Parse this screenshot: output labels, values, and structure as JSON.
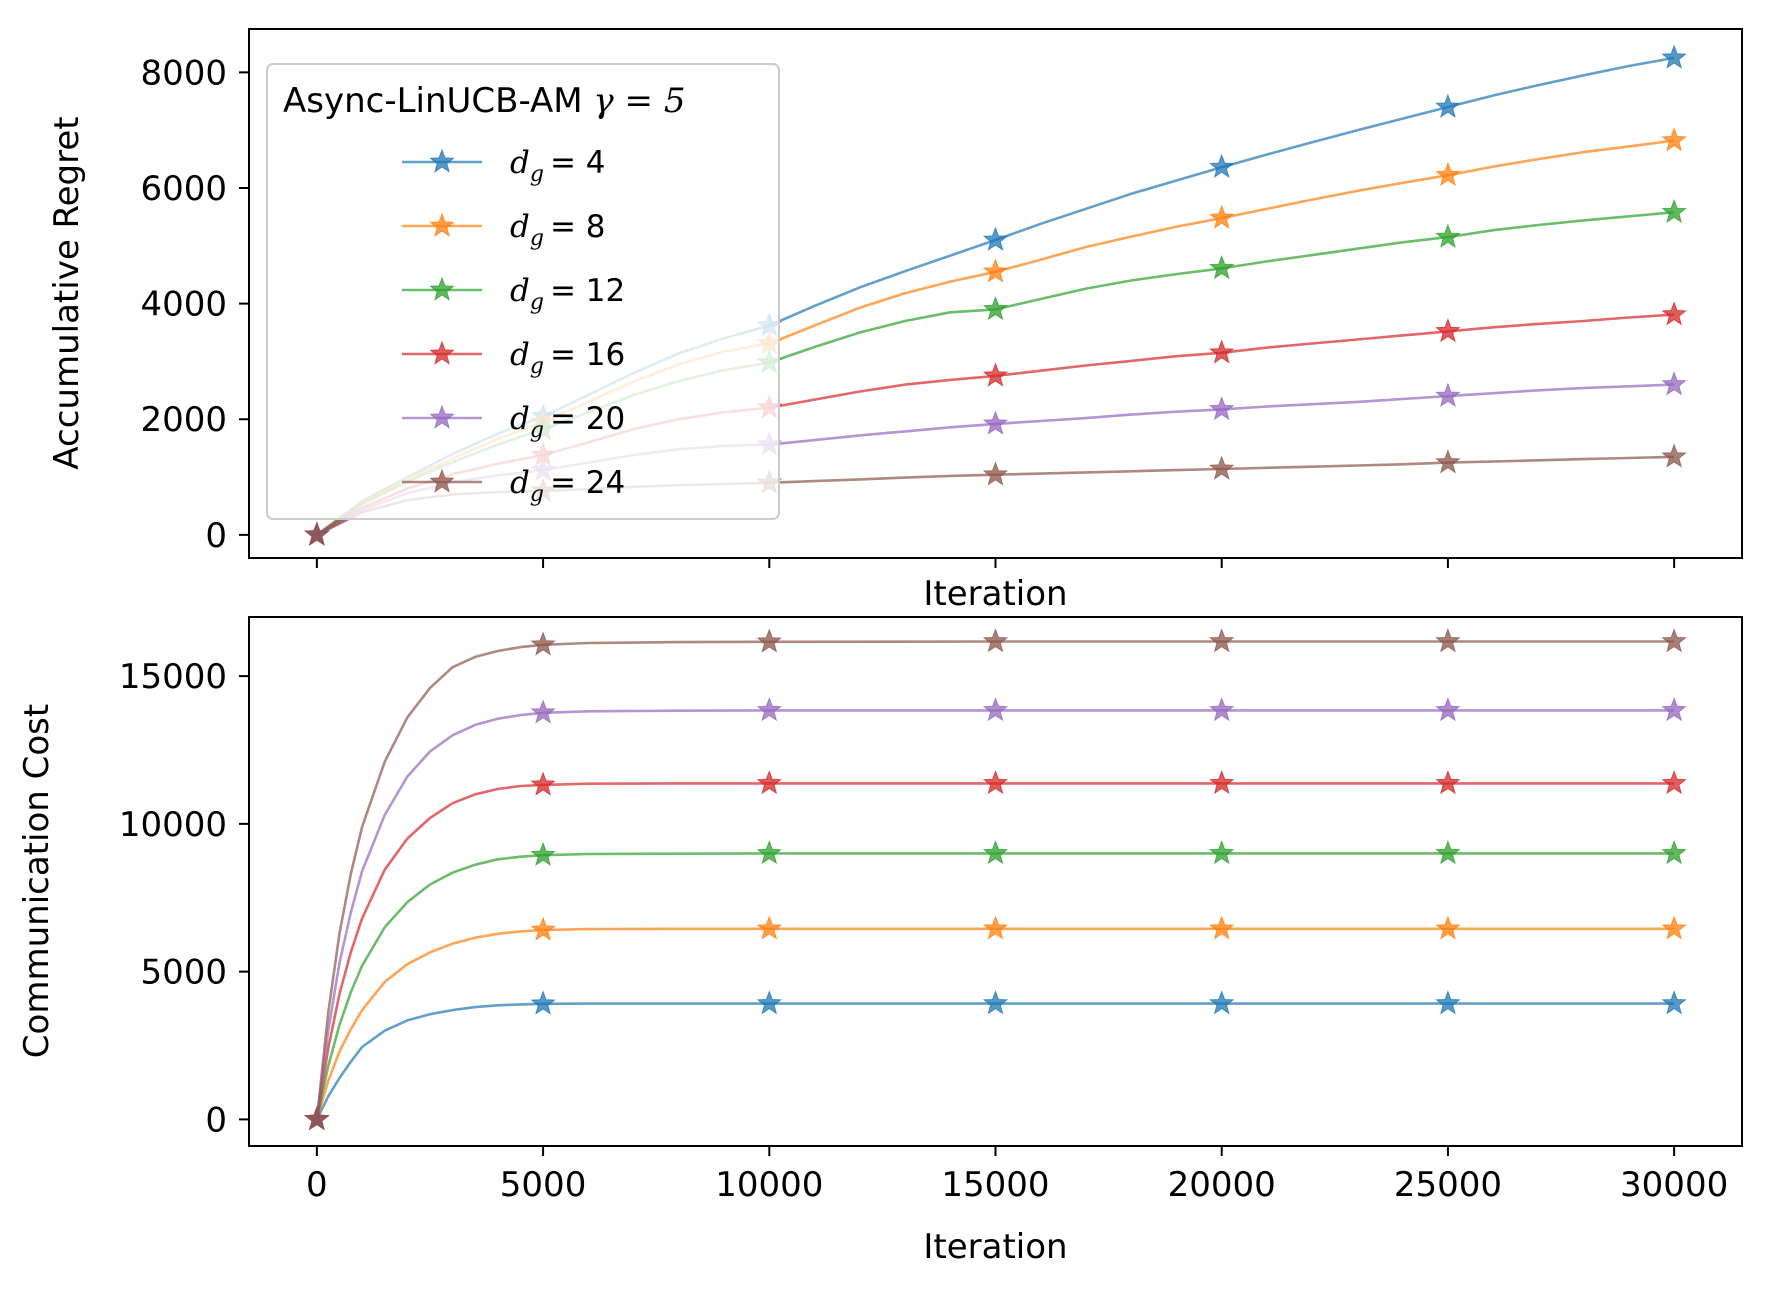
{
  "colors": [
    "#1f77b4",
    "#ff7f0e",
    "#2ca02c",
    "#d62728",
    "#9467bd",
    "#8c564b"
  ],
  "chart_data": [
    {
      "type": "line",
      "ylabel": "Accumulative Regret",
      "xlabel": "Iteration",
      "xlim": [
        -1500,
        31500
      ],
      "ylim": [
        -400,
        8750
      ],
      "yticks": [
        0,
        2000,
        4000,
        6000,
        8000
      ],
      "xticks": [
        0,
        5000,
        10000,
        15000,
        20000,
        25000,
        30000
      ],
      "xtick_labels_visible": false,
      "grid": false,
      "legend": {
        "placement": "upper-left",
        "title_prefix": "Async-LinUCB-AM ",
        "title_math": "γ = 5",
        "entries": [
          "d_g = 4",
          "d_g = 8",
          "d_g = 12",
          "d_g = 16",
          "d_g = 20",
          "d_g = 24"
        ],
        "labels": [
          {
            "sym": "d",
            "sub": "g",
            "value": "= 4"
          },
          {
            "sym": "d",
            "sub": "g",
            "value": "= 8"
          },
          {
            "sym": "d",
            "sub": "g",
            "value": "= 12"
          },
          {
            "sym": "d",
            "sub": "g",
            "value": "= 16"
          },
          {
            "sym": "d",
            "sub": "g",
            "value": "= 20"
          },
          {
            "sym": "d",
            "sub": "g",
            "value": "= 24"
          }
        ]
      },
      "marker": "star",
      "marker_x": [
        0,
        5000,
        10000,
        15000,
        20000,
        25000,
        30000
      ],
      "x": [
        0,
        1000,
        2000,
        3000,
        4000,
        5000,
        6000,
        7000,
        8000,
        9000,
        10000,
        11000,
        12000,
        13000,
        14000,
        15000,
        16000,
        17000,
        18000,
        19000,
        20000,
        21000,
        22000,
        23000,
        24000,
        25000,
        26000,
        27000,
        28000,
        29000,
        30000
      ],
      "series": [
        {
          "name": "d_g = 4",
          "values": [
            0,
            580,
            1000,
            1400,
            1750,
            2050,
            2420,
            2800,
            3140,
            3400,
            3620,
            3960,
            4280,
            4560,
            4830,
            5100,
            5380,
            5640,
            5900,
            6130,
            6360,
            6580,
            6790,
            7000,
            7200,
            7400,
            7600,
            7780,
            7950,
            8110,
            8250
          ]
        },
        {
          "name": "d_g = 8",
          "values": [
            0,
            560,
            960,
            1320,
            1660,
            1950,
            2300,
            2650,
            2950,
            3170,
            3310,
            3620,
            3930,
            4180,
            4380,
            4550,
            4760,
            4980,
            5160,
            5330,
            5480,
            5640,
            5800,
            5950,
            6090,
            6220,
            6370,
            6500,
            6620,
            6720,
            6820
          ]
        },
        {
          "name": "d_g = 12",
          "values": [
            0,
            530,
            920,
            1260,
            1560,
            1830,
            2120,
            2420,
            2660,
            2850,
            2980,
            3250,
            3500,
            3700,
            3850,
            3900,
            4080,
            4260,
            4400,
            4510,
            4610,
            4730,
            4840,
            4950,
            5060,
            5150,
            5270,
            5360,
            5440,
            5510,
            5580
          ]
        },
        {
          "name": "d_g = 16",
          "values": [
            0,
            470,
            800,
            1050,
            1230,
            1380,
            1600,
            1830,
            2000,
            2120,
            2200,
            2340,
            2480,
            2600,
            2680,
            2750,
            2840,
            2930,
            3010,
            3090,
            3150,
            3240,
            3310,
            3380,
            3450,
            3520,
            3590,
            3650,
            3700,
            3760,
            3810
          ]
        },
        {
          "name": "d_g = 20",
          "values": [
            0,
            430,
            720,
            910,
            1030,
            1120,
            1250,
            1380,
            1480,
            1540,
            1560,
            1640,
            1720,
            1790,
            1860,
            1920,
            1970,
            2020,
            2080,
            2130,
            2170,
            2220,
            2260,
            2300,
            2350,
            2400,
            2450,
            2500,
            2540,
            2570,
            2600
          ]
        },
        {
          "name": "d_g = 24",
          "values": [
            0,
            390,
            600,
            700,
            740,
            760,
            790,
            830,
            860,
            880,
            900,
            930,
            960,
            990,
            1020,
            1040,
            1060,
            1080,
            1100,
            1120,
            1140,
            1160,
            1180,
            1200,
            1220,
            1250,
            1270,
            1290,
            1310,
            1330,
            1350
          ]
        }
      ]
    },
    {
      "type": "line",
      "ylabel": "Communication Cost",
      "xlabel": "Iteration",
      "xlim": [
        -1500,
        31500
      ],
      "ylim": [
        -900,
        17000
      ],
      "yticks": [
        0,
        5000,
        10000,
        15000
      ],
      "xticks": [
        0,
        5000,
        10000,
        15000,
        20000,
        25000,
        30000
      ],
      "xtick_labels_visible": true,
      "grid": false,
      "marker": "star",
      "marker_x": [
        0,
        5000,
        10000,
        15000,
        20000,
        25000,
        30000
      ],
      "x": [
        0,
        250,
        500,
        750,
        1000,
        1500,
        2000,
        2500,
        3000,
        3500,
        4000,
        4500,
        5000,
        6000,
        8000,
        10000,
        15000,
        20000,
        25000,
        30000
      ],
      "series": [
        {
          "name": "d_g = 4",
          "values": [
            0,
            780,
            1400,
            1950,
            2450,
            3000,
            3350,
            3560,
            3700,
            3800,
            3860,
            3890,
            3910,
            3920,
            3920,
            3920,
            3920,
            3920,
            3920,
            3920
          ]
        },
        {
          "name": "d_g = 8",
          "values": [
            0,
            1300,
            2300,
            3050,
            3700,
            4650,
            5250,
            5650,
            5950,
            6150,
            6280,
            6360,
            6410,
            6440,
            6450,
            6450,
            6450,
            6450,
            6450,
            6450
          ]
        },
        {
          "name": "d_g = 12",
          "values": [
            0,
            1800,
            3200,
            4300,
            5200,
            6500,
            7350,
            7950,
            8350,
            8620,
            8800,
            8890,
            8940,
            8980,
            8990,
            9000,
            9000,
            9000,
            9000,
            9000
          ]
        },
        {
          "name": "d_g = 16",
          "values": [
            0,
            2400,
            4250,
            5650,
            6800,
            8450,
            9500,
            10200,
            10700,
            11000,
            11180,
            11280,
            11320,
            11360,
            11370,
            11370,
            11370,
            11370,
            11370,
            11370
          ]
        },
        {
          "name": "d_g = 20",
          "values": [
            0,
            3000,
            5300,
            7000,
            8400,
            10300,
            11600,
            12450,
            13000,
            13350,
            13560,
            13680,
            13760,
            13810,
            13830,
            13840,
            13840,
            13840,
            13840,
            13840
          ]
        },
        {
          "name": "d_g = 24",
          "values": [
            0,
            3600,
            6300,
            8300,
            9900,
            12100,
            13600,
            14600,
            15300,
            15650,
            15850,
            15980,
            16060,
            16120,
            16150,
            16160,
            16170,
            16170,
            16170,
            16170
          ]
        }
      ]
    }
  ]
}
